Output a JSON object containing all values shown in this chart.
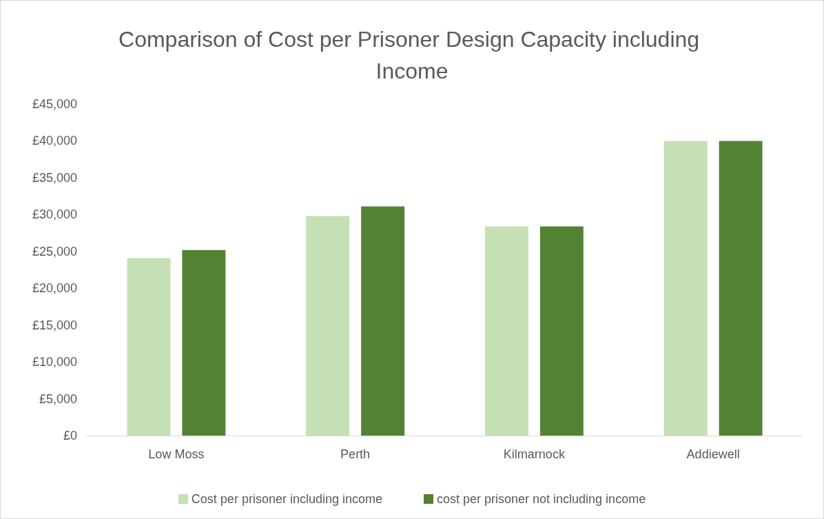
{
  "chart_data": {
    "type": "bar",
    "title": "Comparison of Cost per Prisoner Design Capacity including Income",
    "categories": [
      "Low Moss",
      "Perth",
      "Kilmarnock",
      "Addiewell"
    ],
    "series": [
      {
        "name": "Cost per prisoner including income",
        "color": "#c5e0b4",
        "values": [
          24100,
          29800,
          28400,
          40000
        ]
      },
      {
        "name": "cost per prisoner not including income",
        "color": "#548235",
        "values": [
          25200,
          31100,
          28400,
          40000
        ]
      }
    ],
    "ylim": [
      0,
      45000
    ],
    "yticks": [
      {
        "value": 0,
        "label": "£0"
      },
      {
        "value": 5000,
        "label": "£5,000"
      },
      {
        "value": 10000,
        "label": "£10,000"
      },
      {
        "value": 15000,
        "label": "£15,000"
      },
      {
        "value": 20000,
        "label": "£20,000"
      },
      {
        "value": 25000,
        "label": "£25,000"
      },
      {
        "value": 30000,
        "label": "£30,000"
      },
      {
        "value": 35000,
        "label": "£35,000"
      },
      {
        "value": 40000,
        "label": "£40,000"
      },
      {
        "value": 45000,
        "label": "£45,000"
      }
    ],
    "grid": false,
    "legend": "bottom"
  }
}
